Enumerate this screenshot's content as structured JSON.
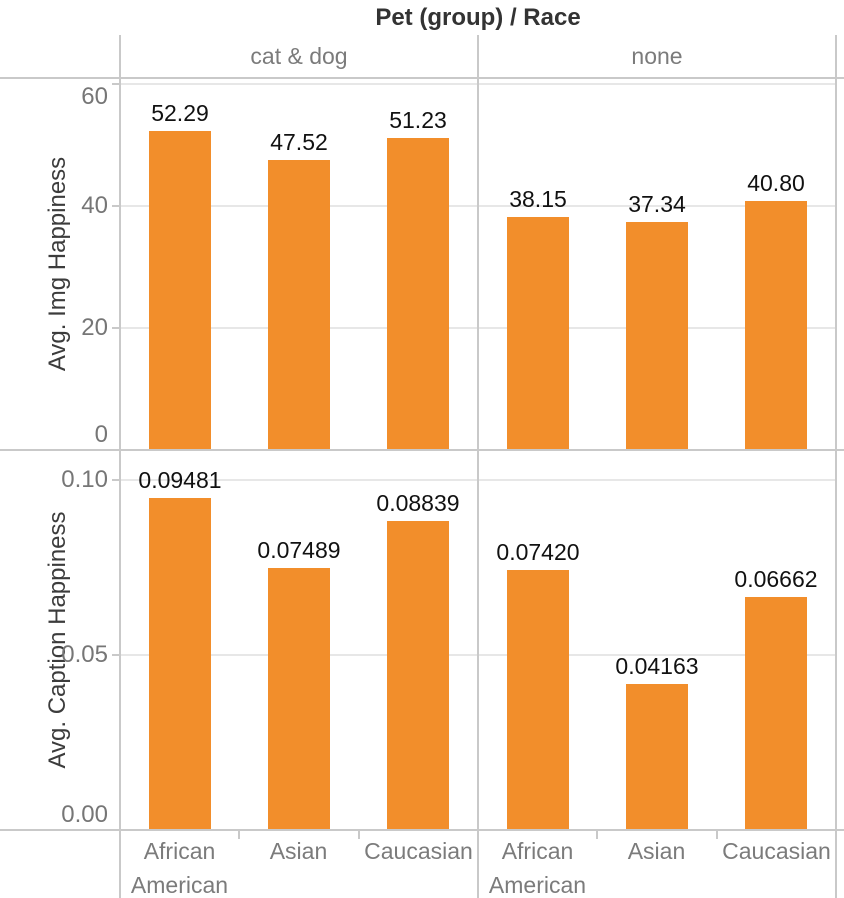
{
  "title": "Pet (group) / Race",
  "column_headers": [
    "cat & dog",
    "none"
  ],
  "categories": [
    "African American",
    "Asian",
    "Caucasian"
  ],
  "categories_lines": [
    [
      "African",
      "American"
    ],
    [
      "Asian"
    ],
    [
      "Caucasian"
    ]
  ],
  "colors": {
    "bar": "#F28E2B"
  },
  "chart_data": [
    {
      "type": "bar",
      "ylabel": "Avg. Img Happiness",
      "ylim": [
        0,
        61
      ],
      "grid": true,
      "legend": "none",
      "yticks": [
        {
          "value": 0,
          "label": "0"
        },
        {
          "value": 20,
          "label": "20"
        },
        {
          "value": 40,
          "label": "40"
        },
        {
          "value": 60,
          "label": "60"
        }
      ],
      "categories": [
        "African American",
        "Asian",
        "Caucasian"
      ],
      "series": [
        {
          "name": "cat & dog",
          "values": [
            52.29,
            47.52,
            51.23
          ],
          "labels": [
            "52.29",
            "47.52",
            "51.23"
          ]
        },
        {
          "name": "none",
          "values": [
            38.15,
            37.34,
            40.8
          ],
          "labels": [
            "38.15",
            "37.34",
            "40.80"
          ]
        }
      ]
    },
    {
      "type": "bar",
      "ylabel": "Avg. Caption Happiness",
      "ylim": [
        0,
        0.1086
      ],
      "grid": true,
      "legend": "none",
      "yticks": [
        {
          "value": 0,
          "label": "0.00"
        },
        {
          "value": 0.05,
          "label": "0.05"
        },
        {
          "value": 0.1,
          "label": "0.10"
        }
      ],
      "categories": [
        "African American",
        "Asian",
        "Caucasian"
      ],
      "series": [
        {
          "name": "cat & dog",
          "values": [
            0.09481,
            0.07489,
            0.08839
          ],
          "labels": [
            "0.09481",
            "0.07489",
            "0.08839"
          ]
        },
        {
          "name": "none",
          "values": [
            0.0742,
            0.04163,
            0.06662
          ],
          "labels": [
            "0.07420",
            "0.04163",
            "0.06662"
          ]
        }
      ]
    }
  ]
}
